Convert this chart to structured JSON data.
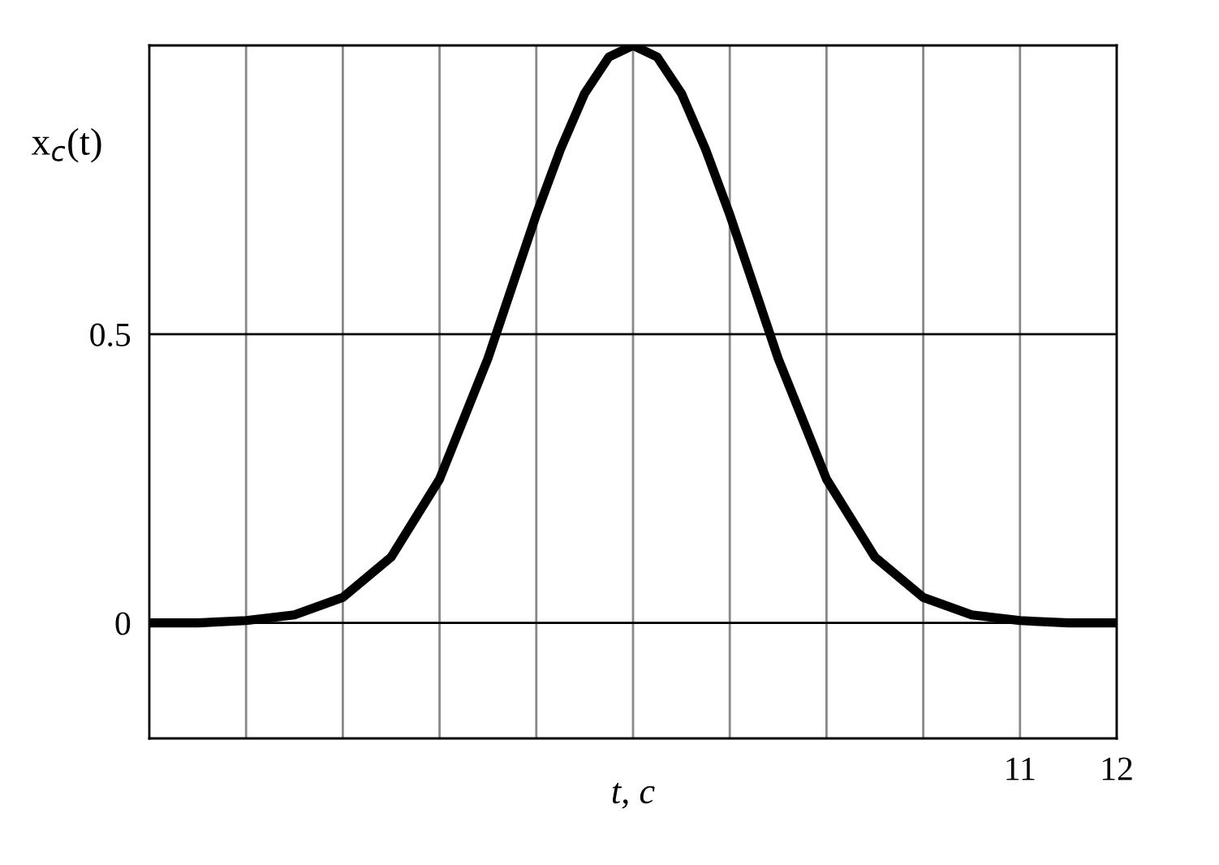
{
  "chart_data": {
    "type": "line",
    "xlabel": "t, с",
    "ylabel": "x$_{c}$(t)",
    "x": [
      2,
      2.5,
      3,
      3.5,
      4,
      4.5,
      5,
      5.5,
      6,
      6.25,
      6.5,
      6.75,
      7,
      7.25,
      7.5,
      7.75,
      8,
      8.5,
      9,
      9.5,
      10,
      10.5,
      11,
      11.5,
      12
    ],
    "series": [
      {
        "color": "#000000",
        "values": [
          0,
          0,
          0.004,
          0.014,
          0.044,
          0.114,
          0.249,
          0.458,
          0.707,
          0.82,
          0.917,
          0.98,
          1,
          0.98,
          0.917,
          0.82,
          0.707,
          0.458,
          0.249,
          0.114,
          0.044,
          0.014,
          0.004,
          0,
          0
        ]
      }
    ],
    "xlim": [
      2,
      12
    ],
    "ylim": [
      -0.2,
      1
    ],
    "xticks": [
      {
        "value": 3,
        "label": null
      },
      {
        "value": 4,
        "label": null
      },
      {
        "value": 5,
        "label": null
      },
      {
        "value": 6,
        "label": null
      },
      {
        "value": 7,
        "label": null
      },
      {
        "value": 8,
        "label": null
      },
      {
        "value": 9,
        "label": null
      },
      {
        "value": 10,
        "label": null
      },
      11,
      12
    ],
    "yticks": [
      0,
      0.5
    ],
    "grid": true,
    "legend": false,
    "marker": "none",
    "line_style": "solid"
  }
}
